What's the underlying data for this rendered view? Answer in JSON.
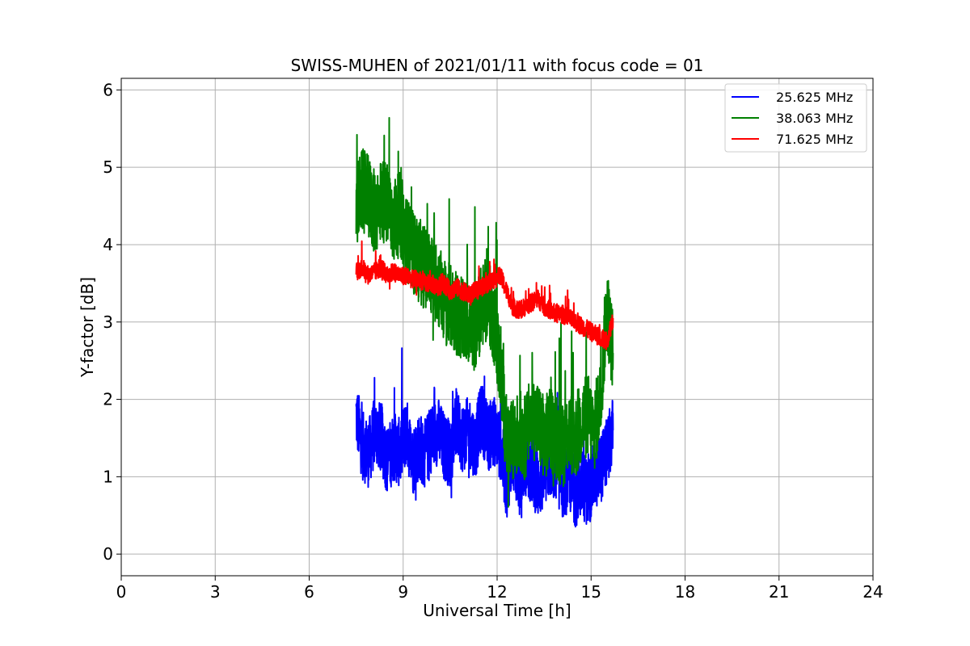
{
  "chart_data": {
    "type": "line",
    "title": "SWISS-MUHEN of 2021/01/11 with focus code = 01",
    "xlabel": "Universal Time [h]",
    "ylabel": "Y-factor [dB]",
    "xlim": [
      0,
      24
    ],
    "ylim": [
      -0.28,
      6.15
    ],
    "xticks": [
      0,
      3,
      6,
      9,
      12,
      15,
      18,
      21,
      24
    ],
    "yticks": [
      0,
      1,
      2,
      3,
      4,
      5,
      6
    ],
    "grid": true,
    "legend_position": "top-right",
    "series": [
      {
        "name": "25.625 MHz",
        "color": "#0000ff",
        "x": [
          7.5,
          7.7,
          7.9,
          8.1,
          8.3,
          8.5,
          8.7,
          8.9,
          9.1,
          9.3,
          9.5,
          9.7,
          9.9,
          10.1,
          10.3,
          10.5,
          10.7,
          10.9,
          11.1,
          11.3,
          11.5,
          11.7,
          11.9,
          12.1,
          12.3,
          12.5,
          12.7,
          12.9,
          13.1,
          13.3,
          13.5,
          13.7,
          13.9,
          14.1,
          14.3,
          14.5,
          14.7,
          14.9,
          15.1,
          15.3,
          15.5,
          15.7
        ],
        "values": [
          1.8,
          1.4,
          1.3,
          1.6,
          1.5,
          1.2,
          1.4,
          1.3,
          1.6,
          1.2,
          1.4,
          1.3,
          1.5,
          1.6,
          1.4,
          1.3,
          1.7,
          1.5,
          1.6,
          1.4,
          1.8,
          1.5,
          1.6,
          1.4,
          0.9,
          1.3,
          1.0,
          1.2,
          1.1,
          0.9,
          1.0,
          1.2,
          1.1,
          0.9,
          1.0,
          0.8,
          0.9,
          0.8,
          1.0,
          1.1,
          1.3,
          1.6
        ],
        "label_display": "25.625 MHz"
      },
      {
        "name": "38.063 MHz",
        "color": "#008000",
        "x": [
          7.5,
          7.7,
          7.9,
          8.1,
          8.3,
          8.5,
          8.7,
          8.9,
          9.1,
          9.3,
          9.5,
          9.7,
          9.9,
          10.1,
          10.3,
          10.5,
          10.7,
          10.9,
          11.1,
          11.3,
          11.5,
          11.7,
          11.9,
          12.1,
          12.3,
          12.5,
          12.7,
          12.9,
          13.1,
          13.3,
          13.5,
          13.7,
          13.9,
          14.1,
          14.3,
          14.5,
          14.7,
          14.9,
          15.1,
          15.3,
          15.5,
          15.7
        ],
        "values": [
          4.5,
          4.7,
          4.6,
          4.4,
          4.6,
          4.5,
          4.3,
          4.4,
          4.1,
          3.9,
          3.8,
          3.7,
          3.6,
          3.5,
          3.3,
          3.2,
          3.1,
          3.0,
          3.0,
          2.9,
          3.2,
          3.3,
          3.0,
          2.4,
          1.5,
          1.4,
          1.6,
          1.5,
          1.8,
          1.7,
          1.5,
          1.6,
          1.5,
          1.4,
          1.6,
          1.5,
          1.7,
          1.8,
          1.6,
          2.0,
          3.2,
          2.6
        ]
      },
      {
        "name": "71.625 MHz",
        "color": "#ff0000",
        "x": [
          7.5,
          7.7,
          7.9,
          8.1,
          8.3,
          8.5,
          8.7,
          8.9,
          9.1,
          9.3,
          9.5,
          9.7,
          9.9,
          10.1,
          10.3,
          10.5,
          10.7,
          10.9,
          11.1,
          11.3,
          11.5,
          11.7,
          11.9,
          12.1,
          12.3,
          12.5,
          12.7,
          12.9,
          13.1,
          13.3,
          13.5,
          13.7,
          13.9,
          14.1,
          14.3,
          14.5,
          14.7,
          14.9,
          15.1,
          15.3,
          15.5,
          15.7
        ],
        "values": [
          3.65,
          3.7,
          3.6,
          3.65,
          3.7,
          3.6,
          3.65,
          3.6,
          3.6,
          3.55,
          3.55,
          3.5,
          3.5,
          3.45,
          3.5,
          3.4,
          3.45,
          3.4,
          3.35,
          3.4,
          3.45,
          3.5,
          3.55,
          3.6,
          3.4,
          3.2,
          3.15,
          3.2,
          3.25,
          3.3,
          3.2,
          3.15,
          3.1,
          3.1,
          3.05,
          3.0,
          2.95,
          2.9,
          2.85,
          2.8,
          2.75,
          3.05
        ]
      }
    ]
  }
}
